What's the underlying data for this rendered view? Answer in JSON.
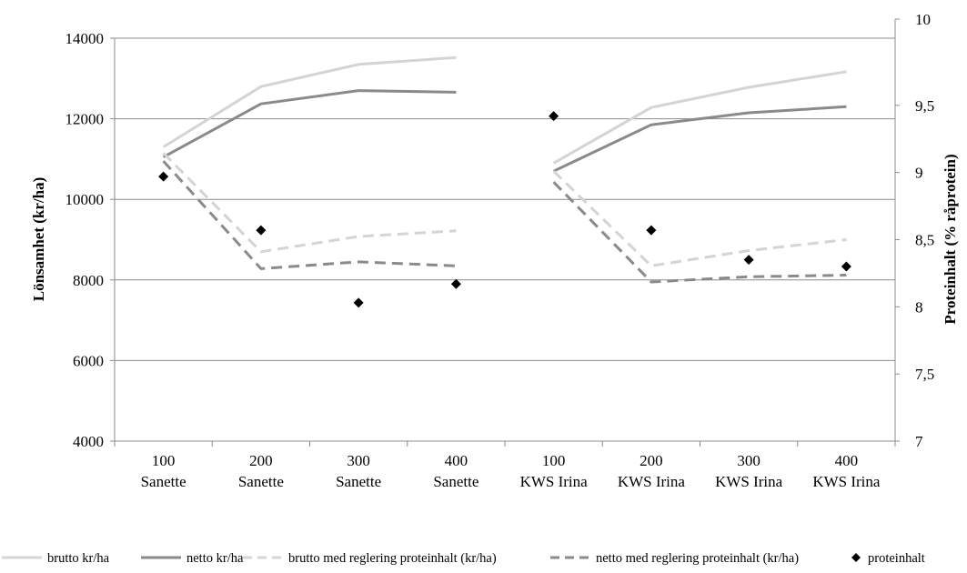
{
  "chart_data": {
    "type": "line",
    "title": "",
    "categories": [
      [
        "100",
        "Sanette"
      ],
      [
        "200",
        "Sanette"
      ],
      [
        "300",
        "Sanette"
      ],
      [
        "400",
        "Sanette"
      ],
      [
        "100",
        "KWS Irina"
      ],
      [
        "200",
        "KWS Irina"
      ],
      [
        "300",
        "KWS Irina"
      ],
      [
        "400",
        "KWS Irina"
      ]
    ],
    "y_left": {
      "label": "Lönsamhet (kr/ha)",
      "range": [
        4000,
        14000
      ],
      "ticks": [
        "4000",
        "6000",
        "8000",
        "10000",
        "12000",
        "14000"
      ]
    },
    "y_right": {
      "label": "Proteinhalt (% råprotein)",
      "range": [
        7,
        10
      ],
      "ticks": [
        "7",
        "7,5",
        "8",
        "8,5",
        "9",
        "9,5",
        "10"
      ]
    },
    "grid": true,
    "legend_position": "bottom",
    "series": [
      {
        "name": "brutto kr/ha",
        "axis": "left",
        "style": "solid",
        "color": "#d4d4d4",
        "groups": [
          [
            11300,
            12800,
            13350,
            13520
          ],
          [
            10900,
            12280,
            12780,
            13170
          ]
        ]
      },
      {
        "name": "netto kr/ha",
        "axis": "left",
        "style": "solid",
        "color": "#8a8a8a",
        "groups": [
          [
            11050,
            12370,
            12700,
            12660
          ],
          [
            10700,
            11850,
            12150,
            12300
          ]
        ]
      },
      {
        "name": "brutto med reglering proteinhalt (kr/ha)",
        "axis": "left",
        "style": "dashed",
        "color": "#d4d4d4",
        "groups": [
          [
            11150,
            8700,
            9080,
            9220
          ],
          [
            10700,
            8350,
            8730,
            9000
          ]
        ]
      },
      {
        "name": "netto med reglering proteinhalt (kr/ha)",
        "axis": "left",
        "style": "dashed",
        "color": "#8a8a8a",
        "groups": [
          [
            10950,
            8280,
            8450,
            8350
          ],
          [
            10430,
            7950,
            8080,
            8120
          ]
        ]
      },
      {
        "name": "proteinhalt",
        "axis": "right",
        "style": "marker",
        "color": "#000000",
        "values": [
          8.97,
          8.57,
          8.03,
          8.17,
          9.42,
          8.57,
          8.35,
          8.3
        ]
      }
    ]
  }
}
